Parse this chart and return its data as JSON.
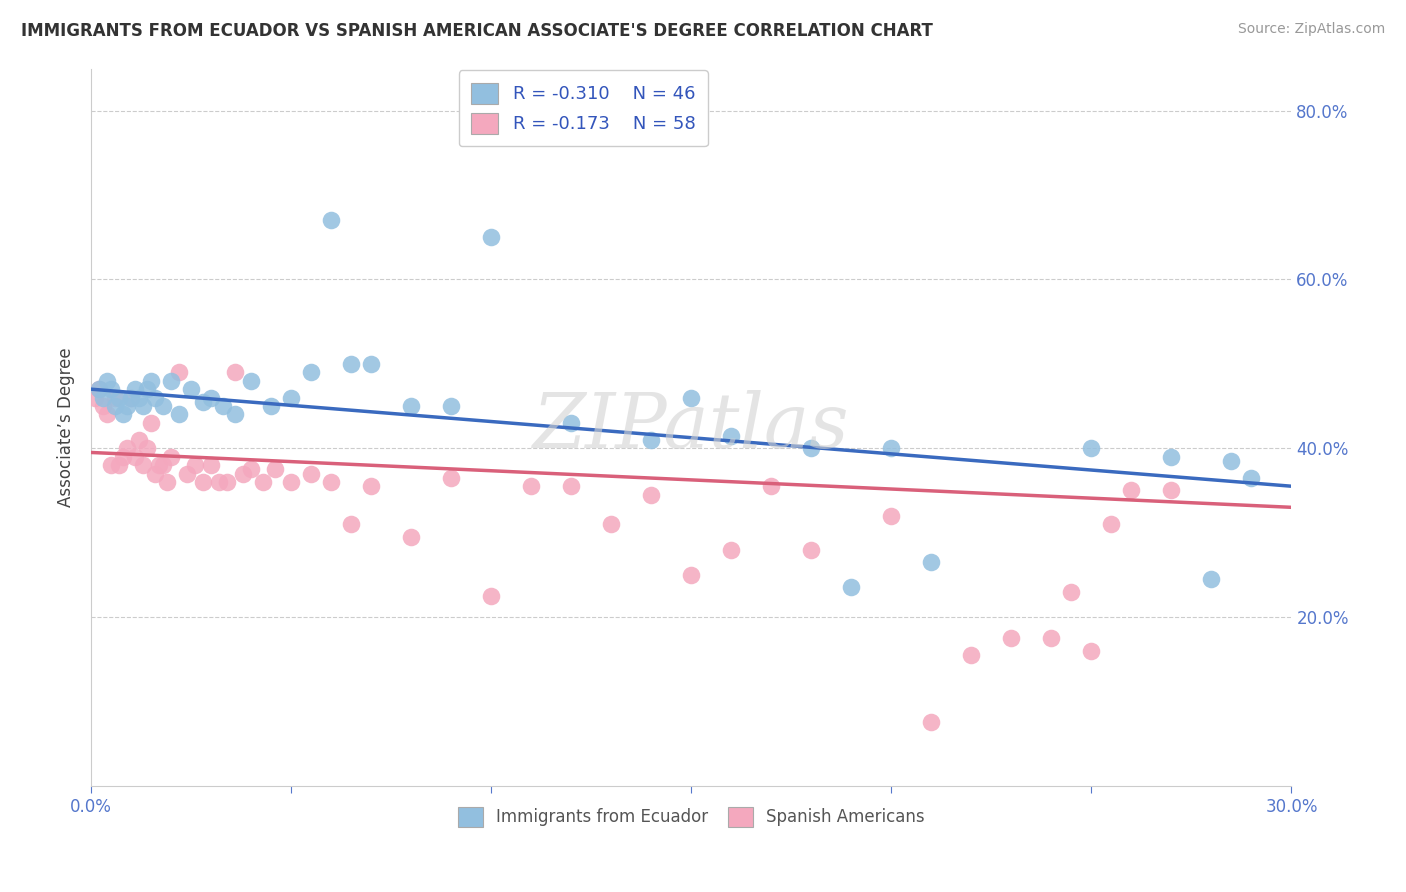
{
  "title": "IMMIGRANTS FROM ECUADOR VS SPANISH AMERICAN ASSOCIATE'S DEGREE CORRELATION CHART",
  "source": "Source: ZipAtlas.com",
  "xlabel": "",
  "ylabel": "Associate’s Degree",
  "xmin": 0.0,
  "xmax": 0.3,
  "ymin": 0.0,
  "ymax": 0.85,
  "yticks": [
    0.2,
    0.4,
    0.6,
    0.8
  ],
  "ytick_labels": [
    "20.0%",
    "40.0%",
    "60.0%",
    "80.0%"
  ],
  "xticks": [
    0.0,
    0.05,
    0.1,
    0.15,
    0.2,
    0.25,
    0.3
  ],
  "xtick_labels": [
    "0.0%",
    "",
    "",
    "",
    "",
    "",
    "30.0%"
  ],
  "blue_R": "-0.310",
  "blue_N": "46",
  "pink_R": "-0.173",
  "pink_N": "58",
  "blue_color": "#92bfdf",
  "pink_color": "#f4a8be",
  "blue_line_color": "#3a6abf",
  "pink_line_color": "#d9607a",
  "legend_label_blue": "Immigrants from Ecuador",
  "legend_label_pink": "Spanish Americans",
  "watermark": "ZIPatlas",
  "blue_scatter_x": [
    0.002,
    0.003,
    0.004,
    0.005,
    0.006,
    0.007,
    0.008,
    0.009,
    0.01,
    0.011,
    0.012,
    0.013,
    0.014,
    0.015,
    0.016,
    0.018,
    0.02,
    0.022,
    0.025,
    0.028,
    0.03,
    0.033,
    0.036,
    0.04,
    0.045,
    0.05,
    0.055,
    0.06,
    0.065,
    0.07,
    0.08,
    0.09,
    0.1,
    0.12,
    0.14,
    0.15,
    0.16,
    0.18,
    0.19,
    0.2,
    0.21,
    0.25,
    0.27,
    0.28,
    0.285,
    0.29
  ],
  "blue_scatter_y": [
    0.47,
    0.46,
    0.48,
    0.47,
    0.45,
    0.46,
    0.44,
    0.45,
    0.46,
    0.47,
    0.46,
    0.45,
    0.47,
    0.48,
    0.46,
    0.45,
    0.48,
    0.44,
    0.47,
    0.455,
    0.46,
    0.45,
    0.44,
    0.48,
    0.45,
    0.46,
    0.49,
    0.67,
    0.5,
    0.5,
    0.45,
    0.45,
    0.65,
    0.43,
    0.41,
    0.46,
    0.415,
    0.4,
    0.235,
    0.4,
    0.265,
    0.4,
    0.39,
    0.245,
    0.385,
    0.365
  ],
  "pink_scatter_x": [
    0.001,
    0.002,
    0.003,
    0.004,
    0.005,
    0.006,
    0.007,
    0.008,
    0.009,
    0.01,
    0.011,
    0.012,
    0.013,
    0.014,
    0.015,
    0.016,
    0.017,
    0.018,
    0.019,
    0.02,
    0.022,
    0.024,
    0.026,
    0.028,
    0.03,
    0.032,
    0.034,
    0.036,
    0.038,
    0.04,
    0.043,
    0.046,
    0.05,
    0.055,
    0.06,
    0.065,
    0.07,
    0.08,
    0.09,
    0.1,
    0.11,
    0.12,
    0.13,
    0.14,
    0.15,
    0.16,
    0.17,
    0.18,
    0.2,
    0.21,
    0.22,
    0.23,
    0.24,
    0.245,
    0.25,
    0.255,
    0.26,
    0.27
  ],
  "pink_scatter_y": [
    0.46,
    0.47,
    0.45,
    0.44,
    0.38,
    0.46,
    0.38,
    0.39,
    0.4,
    0.46,
    0.39,
    0.41,
    0.38,
    0.4,
    0.43,
    0.37,
    0.38,
    0.38,
    0.36,
    0.39,
    0.49,
    0.37,
    0.38,
    0.36,
    0.38,
    0.36,
    0.36,
    0.49,
    0.37,
    0.375,
    0.36,
    0.375,
    0.36,
    0.37,
    0.36,
    0.31,
    0.355,
    0.295,
    0.365,
    0.225,
    0.355,
    0.355,
    0.31,
    0.345,
    0.25,
    0.28,
    0.355,
    0.28,
    0.32,
    0.075,
    0.155,
    0.175,
    0.175,
    0.23,
    0.16,
    0.31,
    0.35,
    0.35
  ],
  "blue_line_x0": 0.0,
  "blue_line_x1": 0.3,
  "blue_line_y0": 0.47,
  "blue_line_y1": 0.355,
  "pink_line_x0": 0.0,
  "pink_line_x1": 0.3,
  "pink_line_y0": 0.395,
  "pink_line_y1": 0.33
}
